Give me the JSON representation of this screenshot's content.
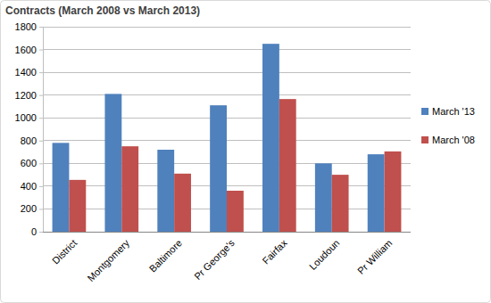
{
  "chart_data": {
    "type": "bar",
    "title": "Contracts (March 2008 vs March 2013)",
    "categories": [
      "District",
      "Montgomery",
      "Baltimore",
      "Pr George's",
      "Fairfax",
      "Loudoun",
      "Pr William"
    ],
    "series": [
      {
        "name": "March '13",
        "color": "#4f81bd",
        "values": [
          780,
          1210,
          720,
          1110,
          1650,
          600,
          680
        ]
      },
      {
        "name": "March '08",
        "color": "#c0504d",
        "values": [
          455,
          750,
          510,
          360,
          1165,
          500,
          705
        ]
      }
    ],
    "ylim": [
      0,
      1800
    ],
    "yticks": [
      0,
      200,
      400,
      600,
      800,
      1000,
      1200,
      1400,
      1600,
      1800
    ],
    "grid": true,
    "legend": "right"
  }
}
